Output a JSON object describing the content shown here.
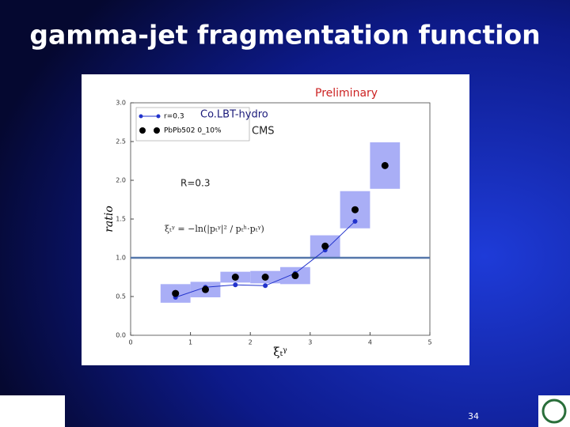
{
  "title": "gamma-jet  fragmentation function",
  "page_number": "34",
  "chart_data": {
    "type": "scatter",
    "ylabel": "ratio",
    "xlabel": "ξₜᵞ",
    "annotations": [
      "Preliminary",
      "Co.LBT-hydro",
      "CMS",
      "R=0.3",
      "ξₜᵞ = −ln(|pₜᵞ|² / pₜʰ·pₜᵞ)"
    ],
    "xlim": [
      0,
      5
    ],
    "xticks": [
      0,
      1,
      2,
      3,
      4,
      5
    ],
    "ylim": [
      0,
      3
    ],
    "yticks": [
      {
        "value": 0,
        "label": "0.0"
      },
      {
        "value": 0.5,
        "label": "0.5"
      },
      {
        "value": 1,
        "label": "1.0"
      },
      {
        "value": 1.5,
        "label": "1.5"
      },
      {
        "value": 2,
        "label": "2.0"
      },
      {
        "value": 2.5,
        "label": "2.5"
      },
      {
        "value": 3,
        "label": "3.0"
      }
    ],
    "reference_line": 1,
    "series": [
      {
        "name": "r=0.3",
        "color": "#2233cc",
        "style": "line",
        "x": [
          0.75,
          1.25,
          1.75,
          2.25,
          2.75,
          3.25,
          3.75
        ],
        "values": [
          0.49,
          0.62,
          0.65,
          0.64,
          0.8,
          1.1,
          1.47
        ]
      },
      {
        "name": "PbPb502 0_10%",
        "color": "#000000",
        "box_color": "#a9aef6",
        "style": "points",
        "x": [
          0.75,
          1.25,
          1.75,
          2.25,
          2.75,
          3.25,
          3.75,
          4.25
        ],
        "values": [
          0.54,
          0.59,
          0.75,
          0.75,
          0.77,
          1.15,
          1.62,
          2.19
        ],
        "errors": [
          0.12,
          0.1,
          0.07,
          0.08,
          0.11,
          0.14,
          0.24,
          0.3
        ]
      }
    ]
  }
}
